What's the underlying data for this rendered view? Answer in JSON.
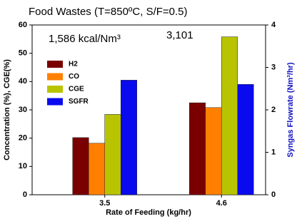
{
  "chart_data": {
    "type": "bar",
    "title": "Food Wastes  (T=850ºC,  S/F=0.5)",
    "annotations": [
      "1,586 kcal/Nm³",
      "3,101"
    ],
    "xlabel": "Rate of Feeding (kg/hr)",
    "ylabel": "Concentration (%), CGE(%)",
    "y2label": "Syngas Flowrate (Nm³/hr)",
    "categories": [
      "3.5",
      "4.6"
    ],
    "series": [
      {
        "name": "H2",
        "color": "#7a0000",
        "values": [
          20.2,
          32.5
        ]
      },
      {
        "name": "CO",
        "color": "#ff8000",
        "values": [
          18.2,
          30.8
        ]
      },
      {
        "name": "CGE",
        "color": "#b8c400",
        "values": [
          28.4,
          55.8
        ]
      },
      {
        "name": "SGFR",
        "color": "#0a0aee",
        "axis": "y2",
        "values": [
          2.7,
          2.6
        ]
      }
    ],
    "ylim": [
      0,
      60
    ],
    "yticks": [
      0,
      10,
      20,
      30,
      40,
      50,
      60
    ],
    "y2lim": [
      0,
      4
    ],
    "y2ticks": [
      0,
      1,
      2,
      3,
      4
    ],
    "y2color": "#1010c0"
  }
}
